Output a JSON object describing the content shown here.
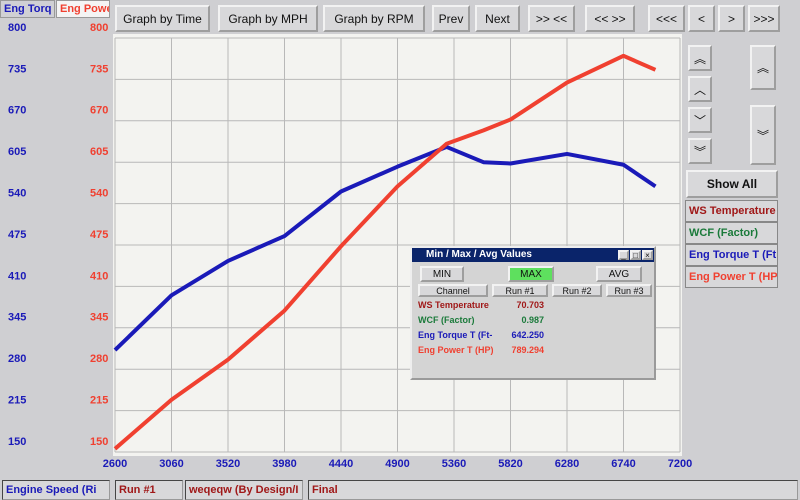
{
  "toolbar": {
    "buttons": [
      "Graph by Time",
      "Graph by MPH",
      "Graph by RPM",
      "Prev",
      "Next",
      ">> <<",
      "<< >>",
      "<<<",
      "<",
      ">",
      ">>>"
    ]
  },
  "chart_data": {
    "type": "line",
    "y_label": "Eng Torq",
    "y2_label": "Eng Powe",
    "x": [
      2600,
      3060,
      3520,
      3980,
      4440,
      4900,
      5300,
      5600,
      5820,
      6280,
      6740,
      7000
    ],
    "series": [
      {
        "name": "Eng Torque T (Ft",
        "color": "#1a1ab8",
        "values": [
          310,
          396,
          450,
          489,
          559,
          598,
          629,
          605,
          603,
          618,
          601,
          567
        ]
      },
      {
        "name": "Eng Power T (HP",
        "color": "#f04030",
        "axis": "y2",
        "values": [
          155,
          232,
          295,
          372,
          473,
          567,
          634,
          655,
          672,
          730,
          772,
          750
        ]
      }
    ],
    "xlim": [
      2600,
      7200
    ],
    "xticks": [
      2600,
      3060,
      3520,
      3980,
      4440,
      4900,
      5360,
      5820,
      6280,
      6740,
      7200
    ],
    "ylim": [
      150,
      800
    ],
    "yticks": [
      150,
      215,
      280,
      345,
      410,
      475,
      540,
      605,
      670,
      735,
      800
    ],
    "y2lim": [
      150,
      800
    ],
    "y2ticks": [
      150,
      215,
      280,
      345,
      410,
      475,
      540,
      605,
      670,
      735,
      800
    ],
    "grid": true
  },
  "side_panel": {
    "show_all": "Show All",
    "channels": [
      {
        "name": "WS Temperature",
        "color": "#a01818"
      },
      {
        "name": "WCF (Factor)",
        "color": "#1a7a3a"
      },
      {
        "name": "Eng Torque T (Ft",
        "color": "#1a1ab8"
      },
      {
        "name": "Eng Power T (HP",
        "color": "#f04030"
      }
    ]
  },
  "dialog": {
    "title": "Min / Max / Avg Values",
    "buttons": [
      "MIN",
      "MAX",
      "AVG"
    ],
    "headers": [
      "Channel",
      "Run #1",
      "Run #2",
      "Run #3"
    ],
    "rows": [
      {
        "name": "WS Temperature",
        "value": "70.703"
      },
      {
        "name": "WCF (Factor)",
        "value": "0.987"
      },
      {
        "name": "Eng Torque T (Ft-",
        "value": "642.250"
      },
      {
        "name": "Eng Power T (HP)",
        "value": "789.294"
      }
    ]
  },
  "status_bar": [
    "Engine Speed (Ri",
    "Run #1",
    "weqeqw (By Design/I",
    "Final"
  ]
}
